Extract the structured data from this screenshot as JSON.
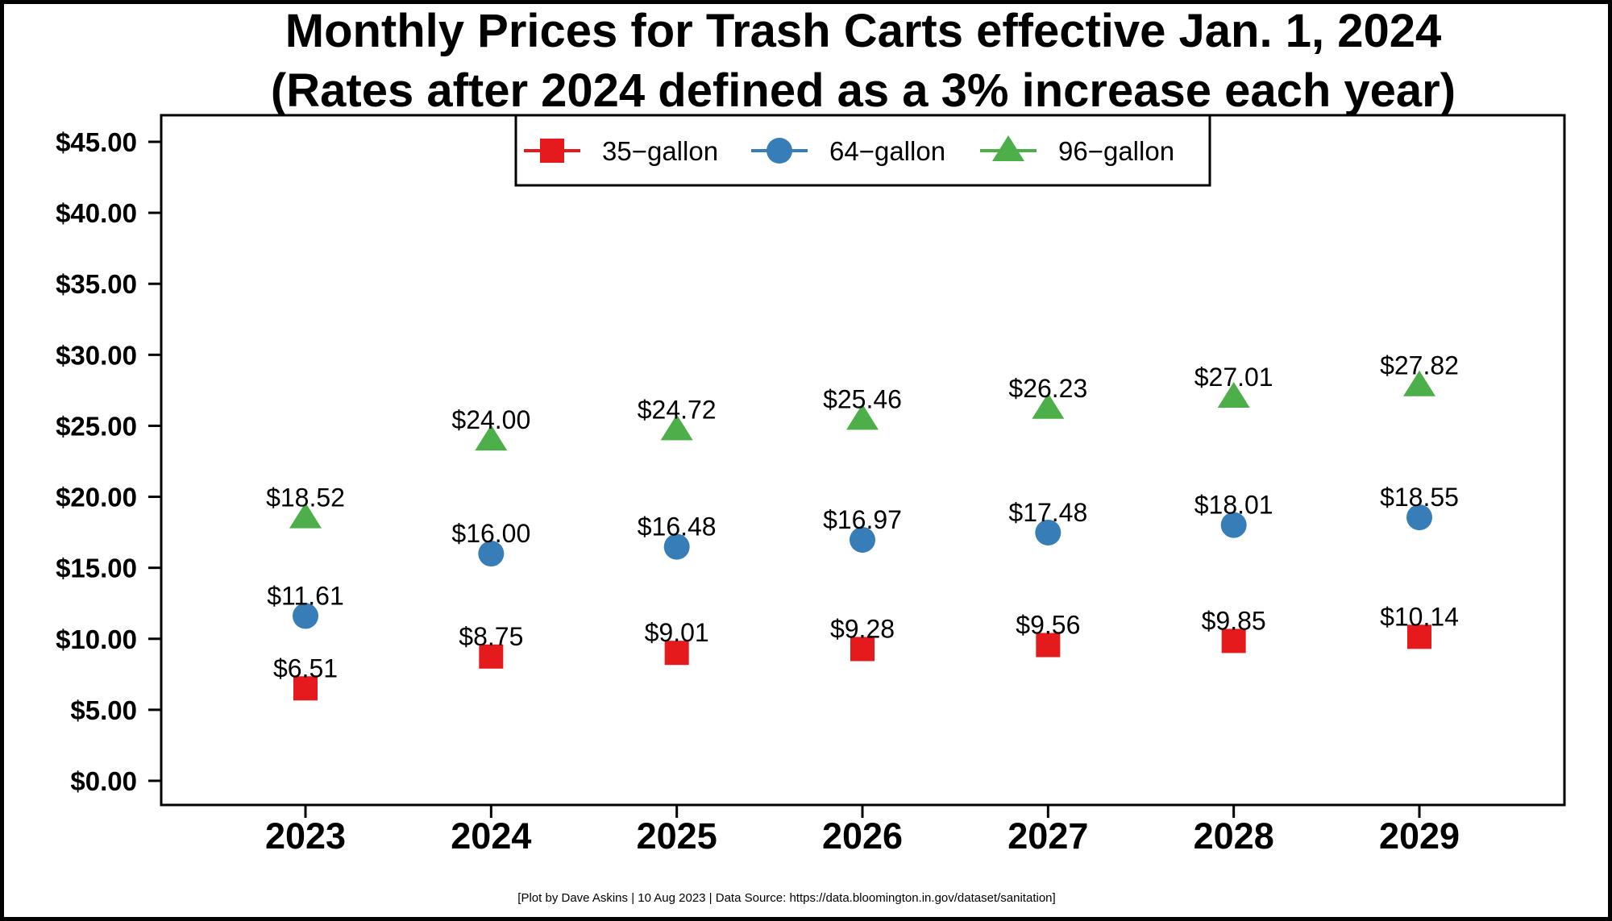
{
  "chart_data": {
    "type": "scatter",
    "title": "Monthly Prices for Trash Carts effective Jan. 1, 2024",
    "subtitle": "(Rates after 2024 defined as a 3% increase each year)",
    "xlabel": "",
    "ylabel": "",
    "categories": [
      "2023",
      "2024",
      "2025",
      "2026",
      "2027",
      "2028",
      "2029"
    ],
    "ylim": [
      0,
      45
    ],
    "yticks": [
      0,
      5,
      10,
      15,
      20,
      25,
      30,
      35,
      40,
      45
    ],
    "ytick_labels": [
      "$0.00",
      "$5.00",
      "$10.00",
      "$15.00",
      "$20.00",
      "$25.00",
      "$30.00",
      "$35.00",
      "$40.00",
      "$45.00"
    ],
    "grid": false,
    "legend_position": "top-center",
    "series": [
      {
        "name": "35−gallon",
        "marker": "square",
        "color": "#e41a1c",
        "values": [
          6.51,
          8.75,
          9.01,
          9.28,
          9.56,
          9.85,
          10.14
        ],
        "labels": [
          "$6.51",
          "$8.75",
          "$9.01",
          "$9.28",
          "$9.56",
          "$9.85",
          "$10.14"
        ]
      },
      {
        "name": "64−gallon",
        "marker": "circle",
        "color": "#377eb8",
        "values": [
          11.61,
          16.0,
          16.48,
          16.97,
          17.48,
          18.01,
          18.55
        ],
        "labels": [
          "$11.61",
          "$16.00",
          "$16.48",
          "$16.97",
          "$17.48",
          "$18.01",
          "$18.55"
        ]
      },
      {
        "name": "96−gallon",
        "marker": "triangle",
        "color": "#4daf4a",
        "values": [
          18.52,
          24.0,
          24.72,
          25.46,
          26.23,
          27.01,
          27.82
        ],
        "labels": [
          "$18.52",
          "$24.00",
          "$24.72",
          "$25.46",
          "$26.23",
          "$27.01",
          "$27.82"
        ]
      }
    ]
  },
  "footer": "[Plot by Dave Askins | 10 Aug 2023 | Data Source: https://data.bloomington.in.gov/dataset/sanitation]"
}
